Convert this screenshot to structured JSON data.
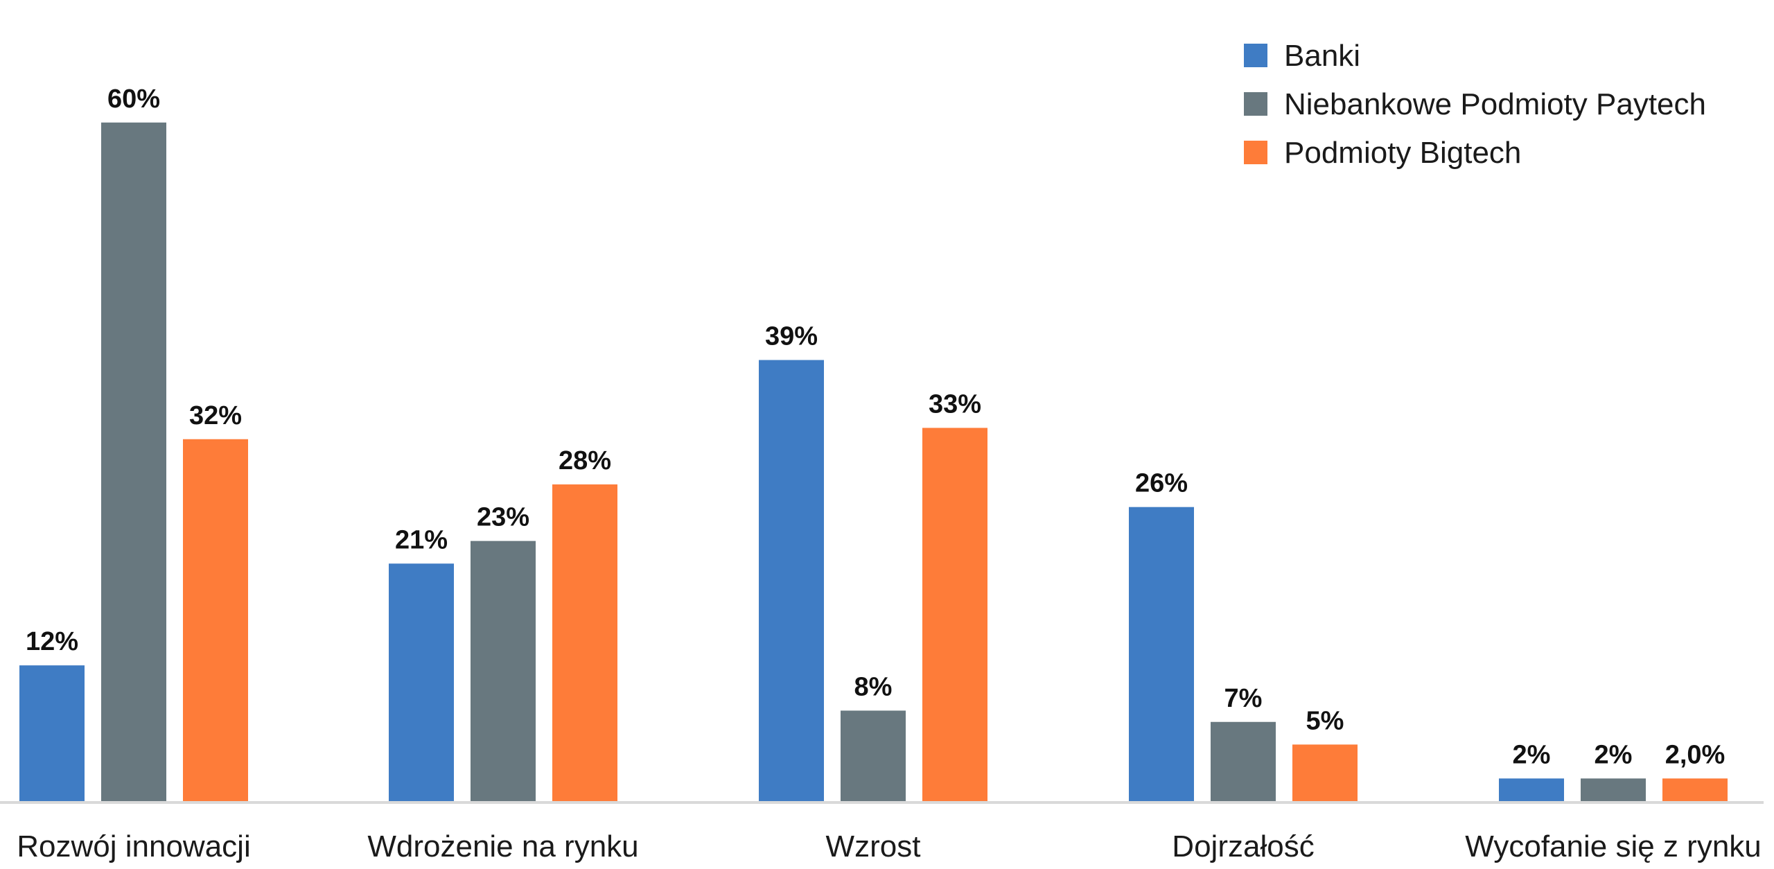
{
  "chart_data": {
    "type": "bar",
    "title": "",
    "xlabel": "",
    "ylabel": "",
    "ylim": [
      0,
      62
    ],
    "grid": false,
    "legend_placement": "top-right",
    "categories": [
      "Rozwój innowacji",
      "Wdrożenie na rynku",
      "Wzrost",
      "Dojrzałość",
      "Wycofanie się z rynku"
    ],
    "series": [
      {
        "name": "Banki",
        "color": "#3f7cc4",
        "values": [
          12,
          21,
          39,
          26,
          2
        ],
        "labels": [
          "12%",
          "21%",
          "39%",
          "26%",
          "2%"
        ]
      },
      {
        "name": "Niebankowe Podmioty Paytech",
        "color": "#68787f",
        "values": [
          60,
          23,
          8,
          7,
          2
        ],
        "labels": [
          "60%",
          "23%",
          "8%",
          "7%",
          "2%"
        ]
      },
      {
        "name": "Podmioty Bigtech",
        "color": "#fe7c39",
        "values": [
          32,
          28,
          33,
          5,
          2
        ],
        "labels": [
          "32%",
          "28%",
          "33%",
          "5%",
          "2,0%"
        ]
      }
    ]
  }
}
